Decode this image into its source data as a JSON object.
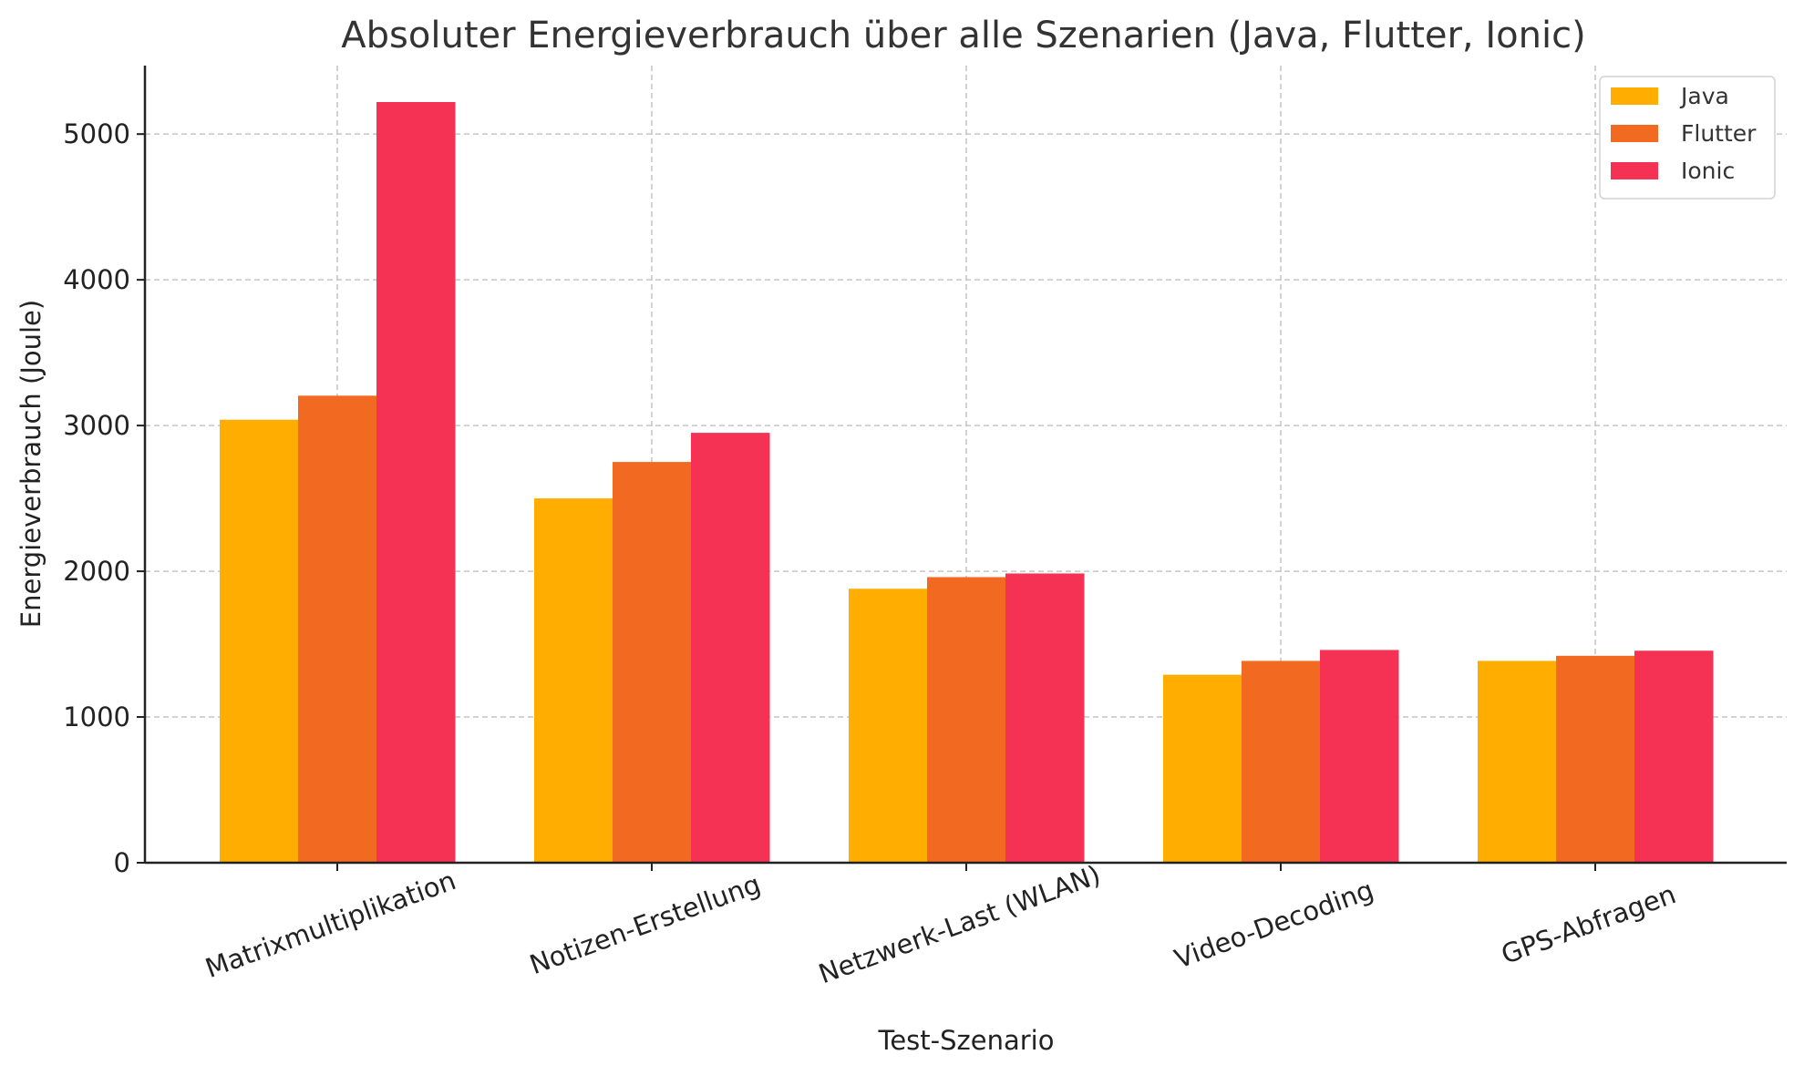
{
  "chart_data": {
    "type": "bar",
    "title": "Absoluter Energieverbrauch über alle Szenarien (Java, Flutter, Ionic)",
    "xlabel": "Test-Szenario",
    "ylabel": "Energieverbrauch (Joule)",
    "categories": [
      "Matrixmultiplikation",
      "Notizen-Erstellung",
      "Netzwerk-Last (WLAN)",
      "Video-Decoding",
      "GPS-Abfragen"
    ],
    "series": [
      {
        "name": "Java",
        "color": "#FFAD00",
        "values": [
          3040,
          2500,
          1880,
          1290,
          1385
        ]
      },
      {
        "name": "Flutter",
        "color": "#F26A21",
        "values": [
          3205,
          2750,
          1960,
          1385,
          1420
        ]
      },
      {
        "name": "Ionic",
        "color": "#F53154",
        "values": [
          5220,
          2950,
          1985,
          1460,
          1455
        ]
      }
    ],
    "ylim": [
      0,
      5470
    ],
    "yticks": [
      0,
      1000,
      2000,
      3000,
      4000,
      5000
    ],
    "grid": true,
    "legend_position": "top-right"
  }
}
